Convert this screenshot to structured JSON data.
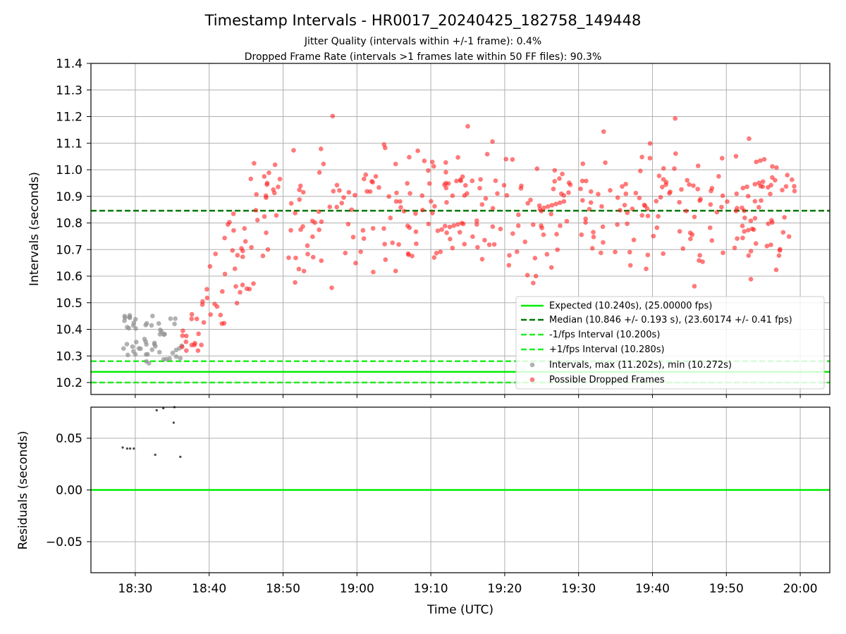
{
  "colors": {
    "expected": "#00ee00",
    "median": "#007700",
    "interval_lines": "#22ee22",
    "intervals_dots": "#909090",
    "dropped_dots": "#ff2222",
    "residual_dots": "#444444",
    "grid": "#b0b0b0"
  },
  "chart_data": [
    {
      "type": "scatter",
      "title": "Timestamp Intervals - HR0017_20240425_182758_149448",
      "subtitle_lines": [
        "Jitter Quality (intervals within +/-1 frame): 0.4%",
        "Dropped Frame Rate (intervals >1 frames late within 50 FF files): 90.3%"
      ],
      "xlabel": "",
      "ylabel": "Intervals (seconds)",
      "x_unit": "minutes since 18:00 UTC",
      "xlim": [
        24,
        124
      ],
      "ylim": [
        10.155,
        11.4
      ],
      "yticks": [
        "10.2",
        "10.3",
        "10.4",
        "10.5",
        "10.6",
        "10.7",
        "10.8",
        "10.9",
        "11.0",
        "11.1",
        "11.2",
        "11.3",
        "11.4"
      ],
      "xticks": [
        30,
        40,
        50,
        60,
        70,
        80,
        90,
        100,
        110,
        120
      ],
      "grid": true,
      "legend_position": "lower-right",
      "reference_lines": [
        {
          "name": "Expected (10.240s), (25.00000 fps)",
          "y": 10.24,
          "style": "solid"
        },
        {
          "name": "Median (10.846 +/- 0.193 s), (23.60174 +/- 0.41 fps)",
          "y": 10.846,
          "style": "dashed-dark"
        },
        {
          "name": "-1/fps Interval (10.200s)",
          "y": 10.2,
          "style": "dashed"
        },
        {
          "name": "+1/fps Interval (10.280s)",
          "y": 10.28,
          "style": "dashed"
        }
      ],
      "series": [
        {
          "name": "Intervals, max (11.202s), min (10.272s)",
          "points_x_range": [
            28.3,
            36.3
          ],
          "points_y_range": [
            10.272,
            10.455
          ],
          "count": 55
        },
        {
          "name": "Possible Dropped Frames",
          "points_x_range": [
            36.3,
            119.8
          ],
          "points_y_range": [
            10.32,
            11.202
          ],
          "count": 430,
          "trend": "rising from 10.35 near 18:36 to about 10.86 by 18:48, then scattered 10.6-11.2"
        }
      ]
    },
    {
      "type": "scatter",
      "xlabel": "Time (UTC)",
      "ylabel": "Residuals (seconds)",
      "xlim": [
        24,
        124
      ],
      "ylim": [
        -0.08,
        0.08
      ],
      "yticks": [
        "−0.05",
        "0.00",
        "0.05"
      ],
      "xtick_labels": [
        "18:30",
        "18:40",
        "18:50",
        "19:00",
        "19:10",
        "19:20",
        "19:30",
        "19:40",
        "19:50",
        "20:00"
      ],
      "zero_line": 0.0,
      "points": [
        [
          28.3,
          0.041
        ],
        [
          28.9,
          0.04
        ],
        [
          29.3,
          0.04
        ],
        [
          29.8,
          0.04
        ],
        [
          32.7,
          0.034
        ],
        [
          32.9,
          0.077
        ],
        [
          33.8,
          0.079
        ],
        [
          35.2,
          0.065
        ],
        [
          35.3,
          0.08
        ],
        [
          36.1,
          0.032
        ]
      ]
    }
  ]
}
